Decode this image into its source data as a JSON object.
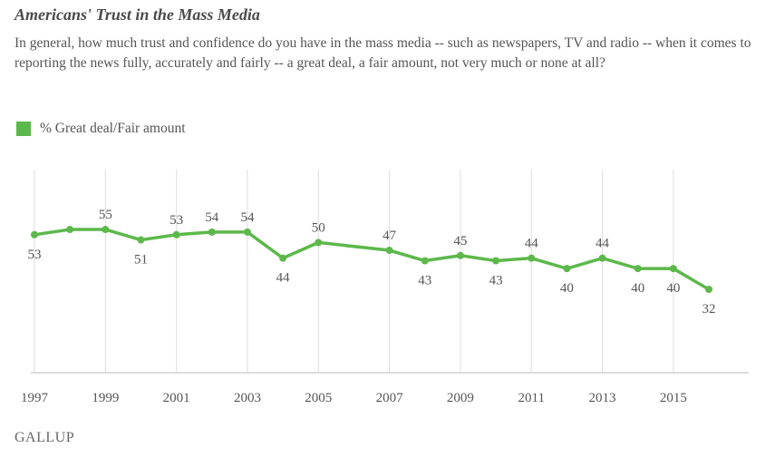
{
  "logo": "GALLUP",
  "chart_data": {
    "type": "line",
    "title": "Americans' Trust in the Mass Media",
    "subtitle": "In general, how much trust and confidence do you have in the mass media -- such as newspapers, TV and radio -- when it comes to reporting the news fully, accurately and fairly -- a great deal, a fair amount, not very much or none at all?",
    "xlabel": "",
    "ylabel": "",
    "ylim": [
      0,
      78
    ],
    "xlim": [
      1997,
      2017
    ],
    "grid": "vertical",
    "legend_placement": "top-left",
    "x_ticks": [
      "1997",
      "1999",
      "2001",
      "2003",
      "2005",
      "2007",
      "2009",
      "2011",
      "2013",
      "2015"
    ],
    "color": "#5cb84a",
    "series": [
      {
        "name": "% Great deal/Fair amount",
        "points": [
          {
            "x": 1997,
            "y": 53,
            "label": "53",
            "pos": "below"
          },
          {
            "x": 1998,
            "y": 55,
            "label": null,
            "pos": null
          },
          {
            "x": 1999,
            "y": 55,
            "label": "55",
            "pos": "above"
          },
          {
            "x": 2000,
            "y": 51,
            "label": "51",
            "pos": "below"
          },
          {
            "x": 2001,
            "y": 53,
            "label": "53",
            "pos": "above"
          },
          {
            "x": 2002,
            "y": 54,
            "label": "54",
            "pos": "above"
          },
          {
            "x": 2003,
            "y": 54,
            "label": "54",
            "pos": "above"
          },
          {
            "x": 2004,
            "y": 44,
            "label": "44",
            "pos": "below"
          },
          {
            "x": 2005,
            "y": 50,
            "label": "50",
            "pos": "above"
          },
          {
            "x": 2007,
            "y": 47,
            "label": "47",
            "pos": "above"
          },
          {
            "x": 2008,
            "y": 43,
            "label": "43",
            "pos": "below"
          },
          {
            "x": 2009,
            "y": 45,
            "label": "45",
            "pos": "above"
          },
          {
            "x": 2010,
            "y": 43,
            "label": "43",
            "pos": "below"
          },
          {
            "x": 2011,
            "y": 44,
            "label": "44",
            "pos": "above"
          },
          {
            "x": 2012,
            "y": 40,
            "label": "40",
            "pos": "below"
          },
          {
            "x": 2013,
            "y": 44,
            "label": "44",
            "pos": "above"
          },
          {
            "x": 2014,
            "y": 40,
            "label": "40",
            "pos": "below"
          },
          {
            "x": 2015,
            "y": 40,
            "label": "40",
            "pos": "below"
          },
          {
            "x": 2016,
            "y": 32,
            "label": "32",
            "pos": "below"
          }
        ]
      }
    ]
  }
}
